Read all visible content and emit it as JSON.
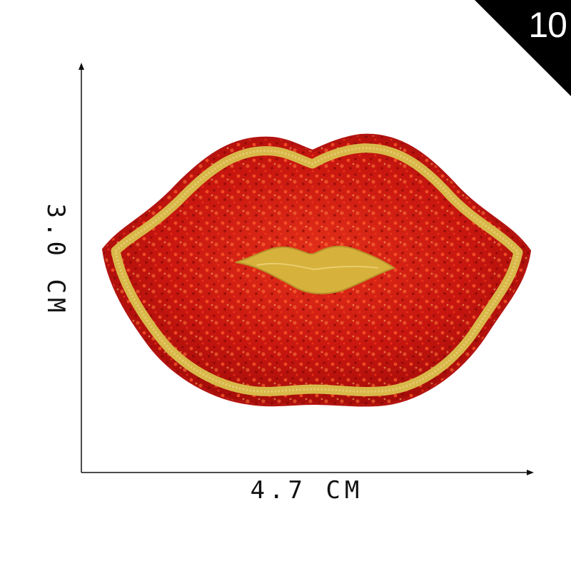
{
  "badge": {
    "number": "10"
  },
  "dimensions": {
    "width_label": "4.7 CM",
    "height_label": "3.0 CM"
  },
  "patch": {
    "subject": "sequined lips patch",
    "colors": {
      "sequin": "#c8160f",
      "sequin_dark": "#7e0707",
      "sequin_light": "#ff6a2a",
      "embroidery": "#d9b84a",
      "edge": "#b31410"
    }
  }
}
